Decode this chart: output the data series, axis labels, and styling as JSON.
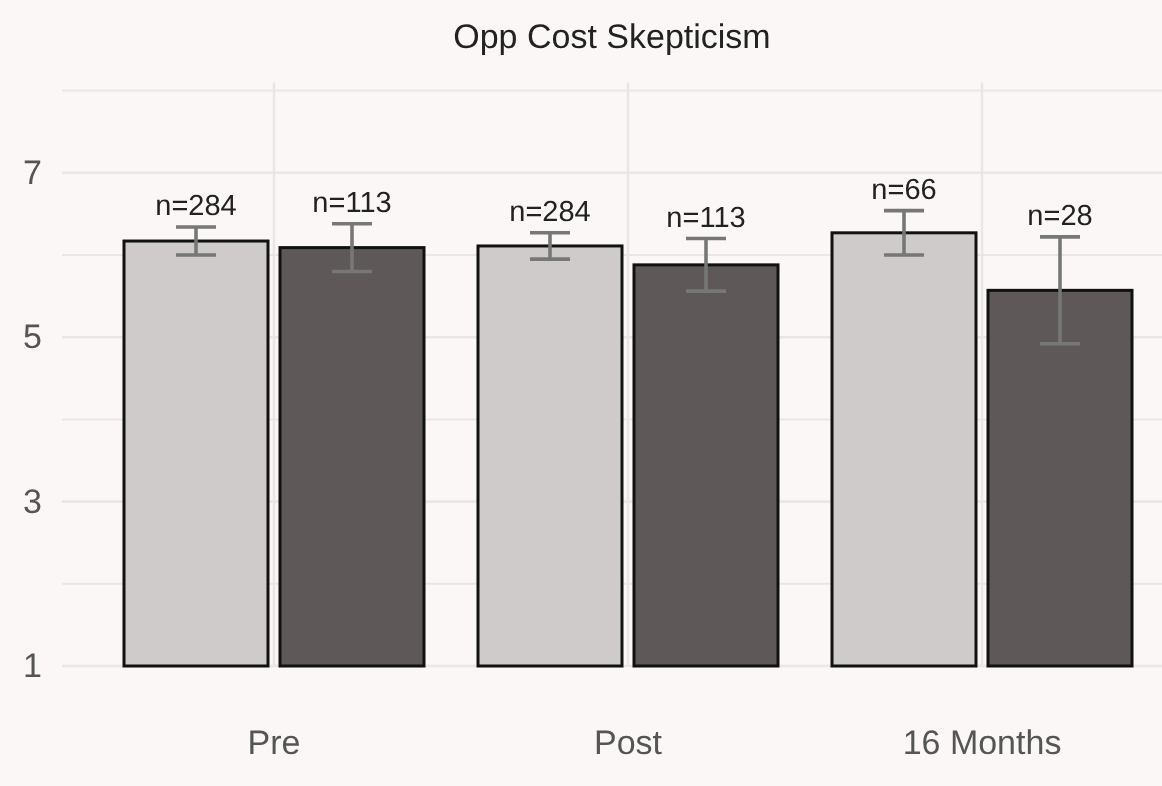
{
  "chart_data": {
    "type": "bar",
    "title": "Opp Cost Skepticism",
    "categories": [
      "Pre",
      "Post",
      "16 Months"
    ],
    "series": [
      {
        "color": "#d0cbcb",
        "values": [
          6.17,
          6.11,
          6.27
        ],
        "errors": [
          0.17,
          0.16,
          0.27
        ]
      },
      {
        "color": "#5e5858",
        "values": [
          6.09,
          5.88,
          5.57
        ],
        "errors": [
          0.29,
          0.32,
          0.65
        ]
      }
    ],
    "annotations": [
      {
        "text": "n=284",
        "x": "Pre",
        "y": 6.17
      },
      {
        "text": "n=113",
        "x": "Pre",
        "y": 6.09
      },
      {
        "text": "n=284",
        "x": "Post",
        "y": 6.11
      },
      {
        "text": "n=113",
        "x": "Post",
        "y": 5.88
      },
      {
        "text": "n=66",
        "x": "16 Months",
        "y": 6.27
      },
      {
        "text": "n=28",
        "x": "16 Months",
        "y": 5.57
      }
    ],
    "ylim": [
      1,
      8.1
    ],
    "yticks": [
      1,
      {
        "value": 2,
        "label": null
      },
      3,
      {
        "value": 4,
        "label": null
      },
      5,
      {
        "value": 6,
        "label": null
      },
      7,
      {
        "value": 8,
        "label": null
      }
    ],
    "grid": true
  }
}
